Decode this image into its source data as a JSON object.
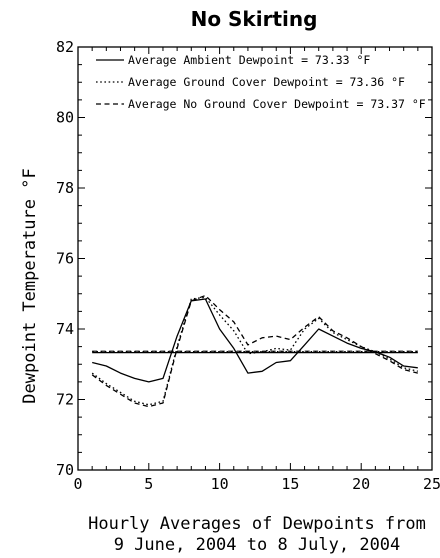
{
  "chart_data": {
    "type": "line",
    "title": "No Skirting",
    "xlabel_lines": [
      "Hourly Averages of Dewpoints from",
      "9 June, 2004 to 8 July, 2004"
    ],
    "ylabel": "Dewpoint Temperature °F",
    "xlim": [
      0,
      25
    ],
    "ylim": [
      70,
      82
    ],
    "xticks": [
      0,
      5,
      10,
      15,
      20,
      25
    ],
    "yticks": [
      70,
      72,
      74,
      76,
      78,
      80,
      82
    ],
    "x": [
      1,
      2,
      3,
      4,
      5,
      6,
      7,
      8,
      9,
      10,
      11,
      12,
      13,
      14,
      15,
      16,
      17,
      18,
      19,
      20,
      21,
      22,
      23,
      24
    ],
    "series": [
      {
        "name": "Average Ambient Dewpoint = 73.33 °F",
        "style": "solid",
        "values": [
          73.05,
          72.95,
          72.75,
          72.6,
          72.5,
          72.6,
          73.8,
          74.8,
          74.85,
          74.0,
          73.45,
          72.75,
          72.8,
          73.05,
          73.1,
          73.55,
          74.0,
          73.8,
          73.6,
          73.45,
          73.35,
          73.2,
          72.95,
          72.9
        ],
        "mean": 73.33
      },
      {
        "name": "Average Ground Cover Dewpoint = 73.36 °F",
        "style": "dotted",
        "values": [
          72.75,
          72.45,
          72.2,
          71.95,
          71.85,
          71.95,
          73.5,
          74.85,
          74.9,
          74.4,
          73.95,
          73.3,
          73.35,
          73.45,
          73.4,
          74.0,
          74.3,
          73.9,
          73.7,
          73.5,
          73.35,
          73.15,
          72.9,
          72.8
        ],
        "mean": 73.36
      },
      {
        "name": "Average No Ground Cover Dewpoint = 73.37 °F",
        "style": "dashed",
        "values": [
          72.7,
          72.4,
          72.15,
          71.9,
          71.8,
          71.9,
          73.45,
          74.8,
          74.95,
          74.55,
          74.2,
          73.55,
          73.75,
          73.8,
          73.7,
          74.05,
          74.35,
          73.95,
          73.75,
          73.5,
          73.3,
          73.1,
          72.85,
          72.75
        ],
        "mean": 73.37
      }
    ],
    "legend_position": "top-left",
    "grid": false
  }
}
